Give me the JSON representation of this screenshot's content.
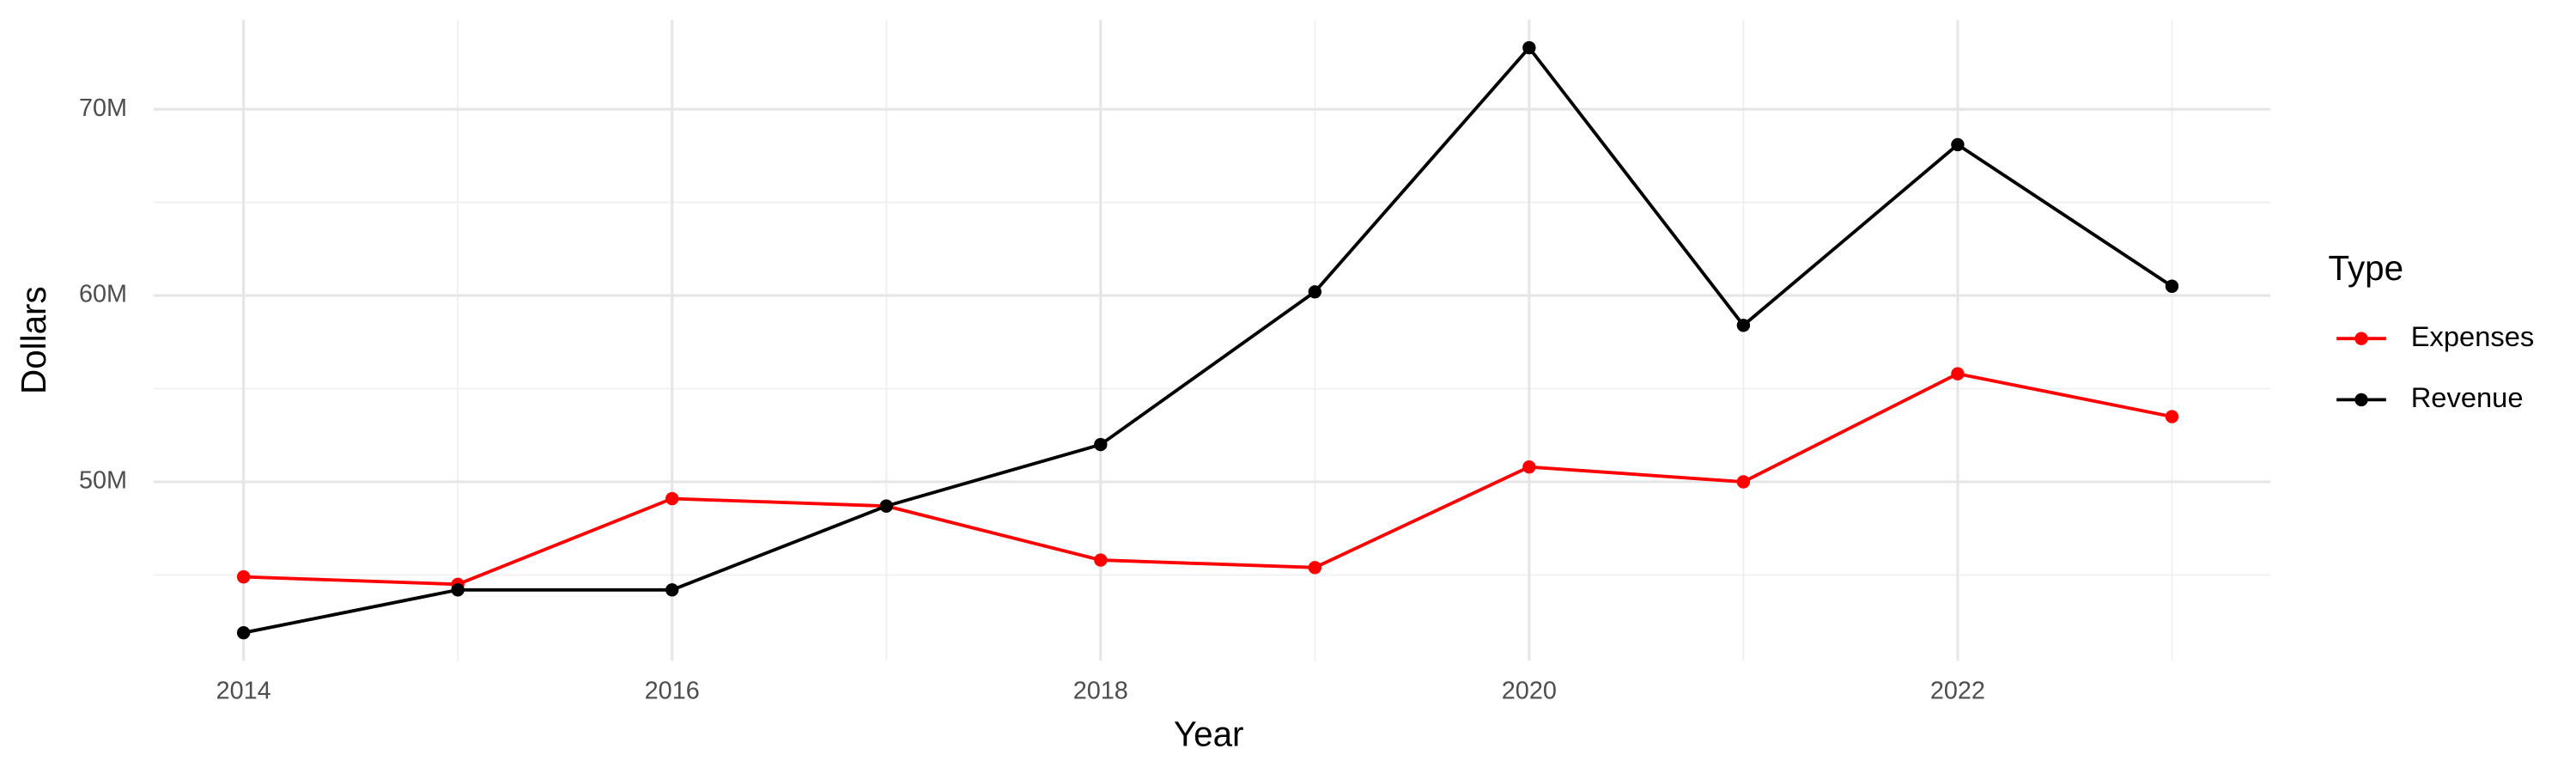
{
  "chart_data": {
    "type": "line",
    "x_label": "Year",
    "y_label": "Dollars",
    "legend_title": "Type",
    "x": [
      2014,
      2015,
      2016,
      2017,
      2018,
      2019,
      2020,
      2021,
      2022,
      2023
    ],
    "series": [
      {
        "name": "Expenses",
        "color": "#ff0000",
        "values": [
          44900000,
          44500000,
          49100000,
          48700000,
          45800000,
          45400000,
          50800000,
          50000000,
          55800000,
          53500000
        ]
      },
      {
        "name": "Revenue",
        "color": "#000000",
        "values": [
          41900000,
          44200000,
          44200000,
          48700000,
          52000000,
          60200000,
          73300000,
          58400000,
          68100000,
          60500000
        ]
      }
    ],
    "xlim": [
      2013.58,
      2023.46
    ],
    "xticks": [
      2014,
      2016,
      2018,
      2020,
      2022
    ],
    "ylim": [
      40400000,
      74800000
    ],
    "yticks": [
      {
        "value": 50000000,
        "label": "50M"
      },
      {
        "value": 60000000,
        "label": "60M"
      },
      {
        "value": 70000000,
        "label": "70M"
      }
    ],
    "grid": true,
    "legend": "right"
  }
}
